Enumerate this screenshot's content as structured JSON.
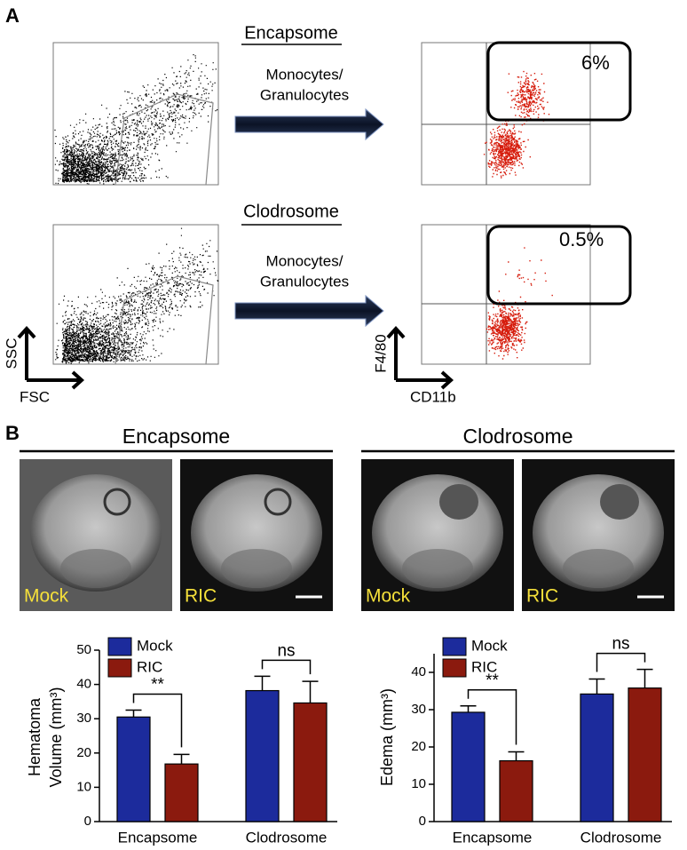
{
  "panel_a": {
    "label": "A",
    "rows": [
      {
        "title": "Encapsome",
        "gate_text": [
          "Monocytes/",
          "Granulocytes"
        ],
        "percent": "6%"
      },
      {
        "title": "Clodrosome",
        "gate_text": [
          "Monocytes/",
          "Granulocytes"
        ],
        "percent": "0.5%"
      }
    ],
    "axes_left": {
      "y": "SSC",
      "x": "FSC"
    },
    "axes_right": {
      "y": "F4/80",
      "x": "CD11b"
    }
  },
  "panel_b": {
    "label": "B",
    "groups": [
      {
        "title": "Encapsome",
        "images": [
          "Mock",
          "RIC"
        ]
      },
      {
        "title": "Clodrosome",
        "images": [
          "Mock",
          "RIC"
        ]
      }
    ]
  },
  "chart_data": [
    {
      "type": "bar",
      "ylabel": [
        "Hematoma",
        "Volume (mm³)"
      ],
      "categories": [
        "Encapsome",
        "Clodrosome"
      ],
      "series": [
        {
          "name": "Mock",
          "color": "#1c2b9c",
          "values": [
            30.5,
            38.2
          ],
          "errors": [
            2,
            4.2
          ]
        },
        {
          "name": "RIC",
          "color": "#8b1a0e",
          "values": [
            16.8,
            34.6
          ],
          "errors": [
            2.8,
            6.3
          ]
        }
      ],
      "ylim": [
        0,
        50
      ],
      "yticks": [
        0,
        10,
        20,
        30,
        40,
        50
      ],
      "annotations": [
        "**",
        "ns"
      ]
    },
    {
      "type": "bar",
      "ylabel": [
        "Edema (mm³)"
      ],
      "categories": [
        "Encapsome",
        "Clodrosome"
      ],
      "series": [
        {
          "name": "Mock",
          "color": "#1c2b9c",
          "values": [
            29.3,
            34.2
          ],
          "errors": [
            1.7,
            4.0
          ]
        },
        {
          "name": "RIC",
          "color": "#8b1a0e",
          "values": [
            16.3,
            35.8
          ],
          "errors": [
            2.4,
            5.0
          ]
        }
      ],
      "ylim": [
        0,
        45
      ],
      "yticks": [
        0,
        10,
        20,
        30,
        40
      ],
      "annotations": [
        "**",
        "ns"
      ]
    }
  ]
}
